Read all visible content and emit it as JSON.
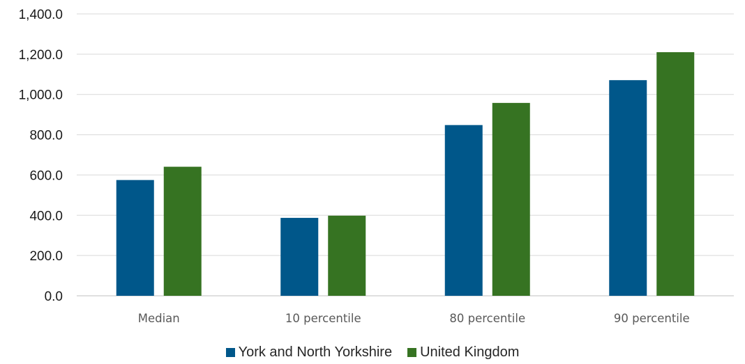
{
  "chart_data": {
    "type": "bar",
    "categories": [
      "Median",
      "10 percentile",
      "80 percentile",
      "90 percentile"
    ],
    "series": [
      {
        "name": "York and North Yorkshire",
        "color": "#00578a",
        "values": [
          575,
          387,
          848,
          1071
        ]
      },
      {
        "name": "United Kingdom",
        "color": "#367322",
        "values": [
          641,
          398,
          958,
          1210
        ]
      }
    ],
    "yticks": [
      "0.0",
      "200.0",
      "400.0",
      "600.0",
      "800.0",
      "1,000.0",
      "1,200.0",
      "1,400.0"
    ],
    "ylim": [
      0,
      1400
    ],
    "grid": true,
    "legend_position": "bottom"
  }
}
